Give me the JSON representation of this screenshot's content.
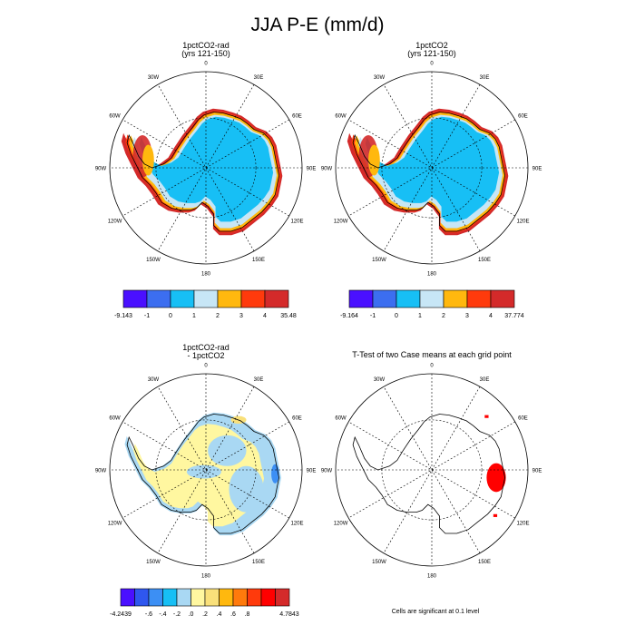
{
  "title": "JJA P-E (mm/d)",
  "colors": {
    "palette7": [
      "#4a10ff",
      "#3c6ef0",
      "#17bff5",
      "#c7e6f6",
      "#ffb80e",
      "#ff3a0c",
      "#d42a2a"
    ],
    "palette12": [
      "#4a10ff",
      "#2f57ef",
      "#3c8ff4",
      "#17bff5",
      "#a9d8f3",
      "#fff7a0",
      "#f9e07a",
      "#ffb80e",
      "#ff7a0c",
      "#ff3a0c",
      "#ff0000",
      "#d42a2a"
    ],
    "land_icons": [
      "#17bff5",
      "#c7e6f6"
    ],
    "significant": "#ff0000"
  },
  "panels": [
    {
      "id": "panel1",
      "title_lines": [
        "1pctCO2-rad",
        "(yrs 121-150)"
      ],
      "lon_labels": {
        "top": "0",
        "top_right": "30E",
        "right_upper": "60E",
        "right": "90E",
        "right_lower": "120E",
        "bottom_right": "150E",
        "bottom": "180",
        "bottom_left": "150W",
        "left_lower": "120W",
        "left": "90W",
        "left_upper": "60W",
        "top_left": "30W"
      },
      "colorbar_labels": [
        "-9.143",
        "-1",
        "0",
        "1",
        "2",
        "3",
        "4",
        "35.48"
      ]
    },
    {
      "id": "panel2",
      "title_lines": [
        "1pctCO2",
        "(yrs 121-150)"
      ],
      "lon_labels": {
        "top": "0",
        "top_right": "30E",
        "right_upper": "60E",
        "right": "90E",
        "right_lower": "120E",
        "bottom_right": "150E",
        "bottom": "180",
        "bottom_left": "150W",
        "left_lower": "120W",
        "left": "90W",
        "left_upper": "60W",
        "top_left": "30W"
      },
      "colorbar_labels": [
        "-9.164",
        "-1",
        "0",
        "1",
        "2",
        "3",
        "4",
        "37.774"
      ]
    },
    {
      "id": "panel3",
      "title_lines": [
        "1pctCO2-rad",
        "- 1pctCO2"
      ],
      "lon_labels": {
        "top": "0",
        "top_right": "30E",
        "right_upper": "60E",
        "right": "90E",
        "right_lower": "120E",
        "bottom_right": "150E",
        "bottom": "180",
        "bottom_left": "150W",
        "left_lower": "120W",
        "left": "90W",
        "left_upper": "60W",
        "top_left": "30W"
      },
      "colorbar_labels": [
        "-4.2439",
        "-.6",
        "-.4",
        "-.2",
        ".0",
        ".2",
        ".4",
        ".6",
        ".8",
        "4.7843"
      ]
    },
    {
      "id": "panel4",
      "title_lines": [
        "T-Test of two Case means at each grid point"
      ],
      "lon_labels": {
        "top": "0",
        "top_right": "30E",
        "right_upper": "60E",
        "right": "90E",
        "right_lower": "120E",
        "bottom_right": "150E",
        "bottom": "180",
        "bottom_left": "150W",
        "left_lower": "120W",
        "left": "90W",
        "left_upper": "60W",
        "top_left": "30W"
      },
      "footnote": "Cells are significant at 0.1 level"
    }
  ]
}
